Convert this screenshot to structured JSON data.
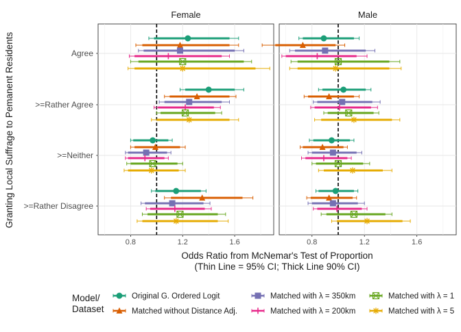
{
  "chart_data": {
    "type": "forest",
    "panels": [
      "Female",
      "Male"
    ],
    "categories": [
      "Agree",
      ">=Rather Agree",
      ">=Neither",
      ">=Rather Disagree"
    ],
    "ylabel": "Granting Local Suffrage to Pemanent Residents",
    "xlabel": "Odds Ratio from McNemar's Test of Proportion",
    "xlabel2": "(Thin Line = 95% CI; Thick Line 90% CI)",
    "xlim": [
      0.55,
      1.9
    ],
    "xticks": [
      0.8,
      1.2,
      1.6
    ],
    "reference_line": 1.0,
    "legend": {
      "title": [
        "Model/",
        "Dataset"
      ],
      "entries": [
        "Original G. Ordered Logit",
        "Matched without Distance Adj.",
        "Matched with  λ = 350km",
        "Matched with  λ = 200km",
        "Matched with  λ = 1",
        "Matched with  λ = 5"
      ]
    },
    "series": [
      {
        "name": "Original G. Ordered Logit",
        "color": "#1b9e77",
        "marker": "circle",
        "points": {
          "Female": [
            [
              1.24,
              0.94,
              1.63,
              0.98,
              1.56
            ],
            [
              1.4,
              1.18,
              1.67,
              1.22,
              1.6
            ],
            [
              0.97,
              0.8,
              1.12,
              0.82,
              1.09
            ],
            [
              1.15,
              0.96,
              1.38,
              0.99,
              1.34
            ]
          ],
          "Male": [
            [
              0.89,
              0.7,
              1.16,
              0.73,
              1.12
            ],
            [
              1.04,
              0.85,
              1.25,
              0.88,
              1.21
            ],
            [
              0.95,
              0.78,
              1.12,
              0.81,
              1.09
            ],
            [
              0.98,
              0.83,
              1.15,
              0.85,
              1.12
            ]
          ]
        }
      },
      {
        "name": "Matched without Distance Adj.",
        "color": "#d95f02",
        "marker": "triangle",
        "points": {
          "Female": [
            [
              1.18,
              0.84,
              1.63,
              0.89,
              1.56
            ],
            [
              1.31,
              1.06,
              1.61,
              1.1,
              1.56
            ],
            [
              0.99,
              0.8,
              1.22,
              0.83,
              1.18
            ],
            [
              1.35,
              1.06,
              1.74,
              1.11,
              1.66
            ]
          ],
          "Male": [
            [
              0.73,
              0.42,
              1.05,
              0.52,
              0.98
            ],
            [
              0.93,
              0.74,
              1.16,
              0.77,
              1.12
            ],
            [
              0.88,
              0.71,
              1.07,
              0.73,
              1.04
            ],
            [
              0.93,
              0.76,
              1.14,
              0.79,
              1.11
            ]
          ]
        }
      },
      {
        "name": "Matched with  λ = 350km",
        "color": "#7570b3",
        "marker": "square",
        "points": {
          "Female": [
            [
              1.18,
              0.86,
              1.67,
              0.9,
              1.6
            ],
            [
              1.25,
              1.02,
              1.56,
              1.06,
              1.5
            ],
            [
              0.92,
              0.76,
              1.11,
              0.78,
              1.08
            ],
            [
              1.12,
              0.88,
              1.41,
              0.91,
              1.36
            ]
          ],
          "Male": [
            [
              0.9,
              0.63,
              1.28,
              0.67,
              1.21
            ],
            [
              1.03,
              0.81,
              1.32,
              0.84,
              1.26
            ],
            [
              0.96,
              0.77,
              1.18,
              0.8,
              1.14
            ],
            [
              0.96,
              0.77,
              1.2,
              0.8,
              1.15
            ]
          ]
        }
      },
      {
        "name": "Matched with  λ = 200km",
        "color": "#e7298a",
        "marker": "plus",
        "points": {
          "Female": [
            [
              1.09,
              0.79,
              1.56,
              0.83,
              1.5
            ],
            [
              1.22,
              0.98,
              1.49,
              1.01,
              1.44
            ],
            [
              0.91,
              0.76,
              1.09,
              0.78,
              1.06
            ],
            [
              1.14,
              0.92,
              1.42,
              0.95,
              1.37
            ]
          ],
          "Male": [
            [
              0.84,
              0.57,
              1.22,
              0.6,
              1.14
            ],
            [
              1.01,
              0.79,
              1.3,
              0.82,
              1.25
            ],
            [
              0.89,
              0.72,
              1.1,
              0.75,
              1.07
            ],
            [
              0.99,
              0.81,
              1.22,
              0.84,
              1.18
            ]
          ]
        }
      },
      {
        "name": "Matched with  λ = 1",
        "color": "#66a61e",
        "marker": "boxx",
        "points": {
          "Female": [
            [
              1.2,
              0.8,
              1.73,
              0.86,
              1.67
            ],
            [
              1.22,
              1.0,
              1.5,
              1.03,
              1.45
            ],
            [
              0.97,
              0.77,
              1.2,
              0.8,
              1.16
            ],
            [
              1.18,
              0.89,
              1.53,
              0.93,
              1.47
            ]
          ],
          "Male": [
            [
              1.0,
              0.64,
              1.47,
              0.69,
              1.39
            ],
            [
              1.08,
              0.89,
              1.31,
              0.92,
              1.27
            ],
            [
              1.0,
              0.8,
              1.24,
              0.83,
              1.19
            ],
            [
              1.12,
              0.87,
              1.41,
              0.91,
              1.36
            ]
          ]
        }
      },
      {
        "name": "Matched with  λ = 5",
        "color": "#e6ab02",
        "marker": "star",
        "points": {
          "Female": [
            [
              1.2,
              0.78,
              1.87,
              0.83,
              1.76
            ],
            [
              1.25,
              0.96,
              1.63,
              1.0,
              1.56
            ],
            [
              0.96,
              0.75,
              1.22,
              0.78,
              1.17
            ],
            [
              1.15,
              0.85,
              1.55,
              0.89,
              1.47
            ]
          ],
          "Male": [
            [
              0.98,
              0.63,
              1.48,
              0.69,
              1.39
            ],
            [
              1.12,
              0.82,
              1.47,
              0.87,
              1.41
            ],
            [
              1.11,
              0.85,
              1.41,
              0.89,
              1.34
            ],
            [
              1.22,
              0.95,
              1.55,
              0.99,
              1.49
            ]
          ]
        }
      }
    ]
  }
}
